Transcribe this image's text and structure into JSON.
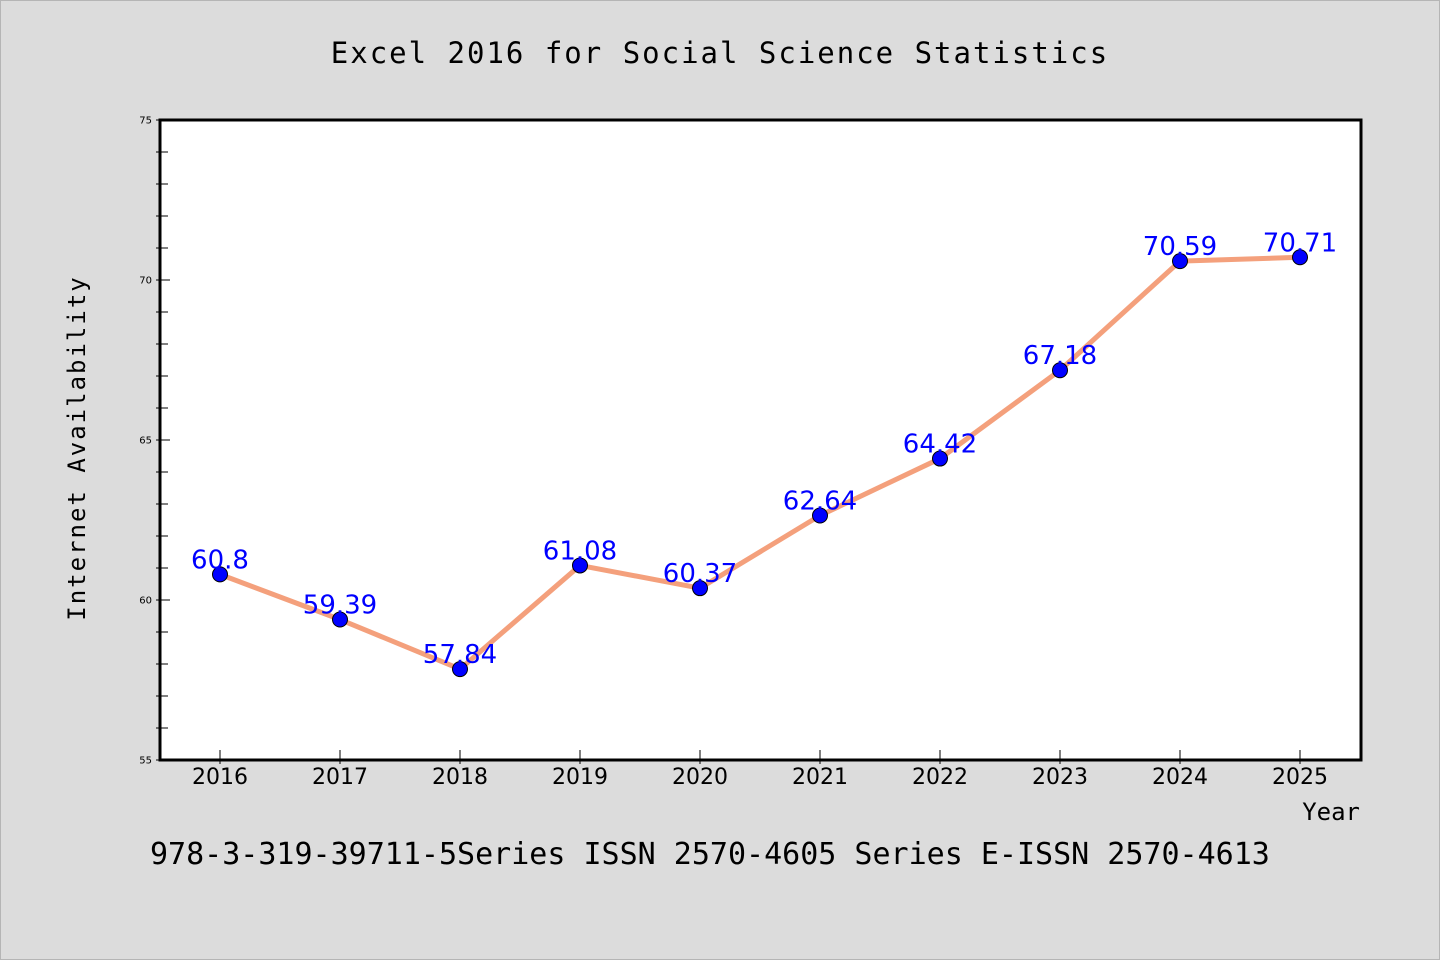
{
  "chart_data": {
    "type": "line",
    "title": "Excel 2016 for Social Science Statistics",
    "xlabel": "Year",
    "ylabel": "Internet Availability",
    "footer": "978-3-319-39711-5Series ISSN 2570-4605 Series E-ISSN 2570-4613",
    "x": [
      2016,
      2017,
      2018,
      2019,
      2020,
      2021,
      2022,
      2023,
      2024,
      2025
    ],
    "values": [
      60.8,
      59.39,
      57.84,
      61.08,
      60.37,
      62.64,
      64.42,
      67.18,
      70.59,
      70.71
    ],
    "data_labels": [
      "60.8",
      "59.39",
      "57.84",
      "61.08",
      "60.37",
      "62.64",
      "64.42",
      "67.18",
      "70.59",
      "70.71"
    ],
    "ylim": [
      55,
      75
    ],
    "yticks": [
      55,
      60,
      65,
      70,
      75
    ],
    "grid": false,
    "legend": "none",
    "colors": {
      "background": "#dcdcdc",
      "plot_area": "#ffffff",
      "line": "#f4a07c",
      "marker": "#0000ff",
      "data_label": "#0000ff",
      "text": "#000000"
    }
  }
}
